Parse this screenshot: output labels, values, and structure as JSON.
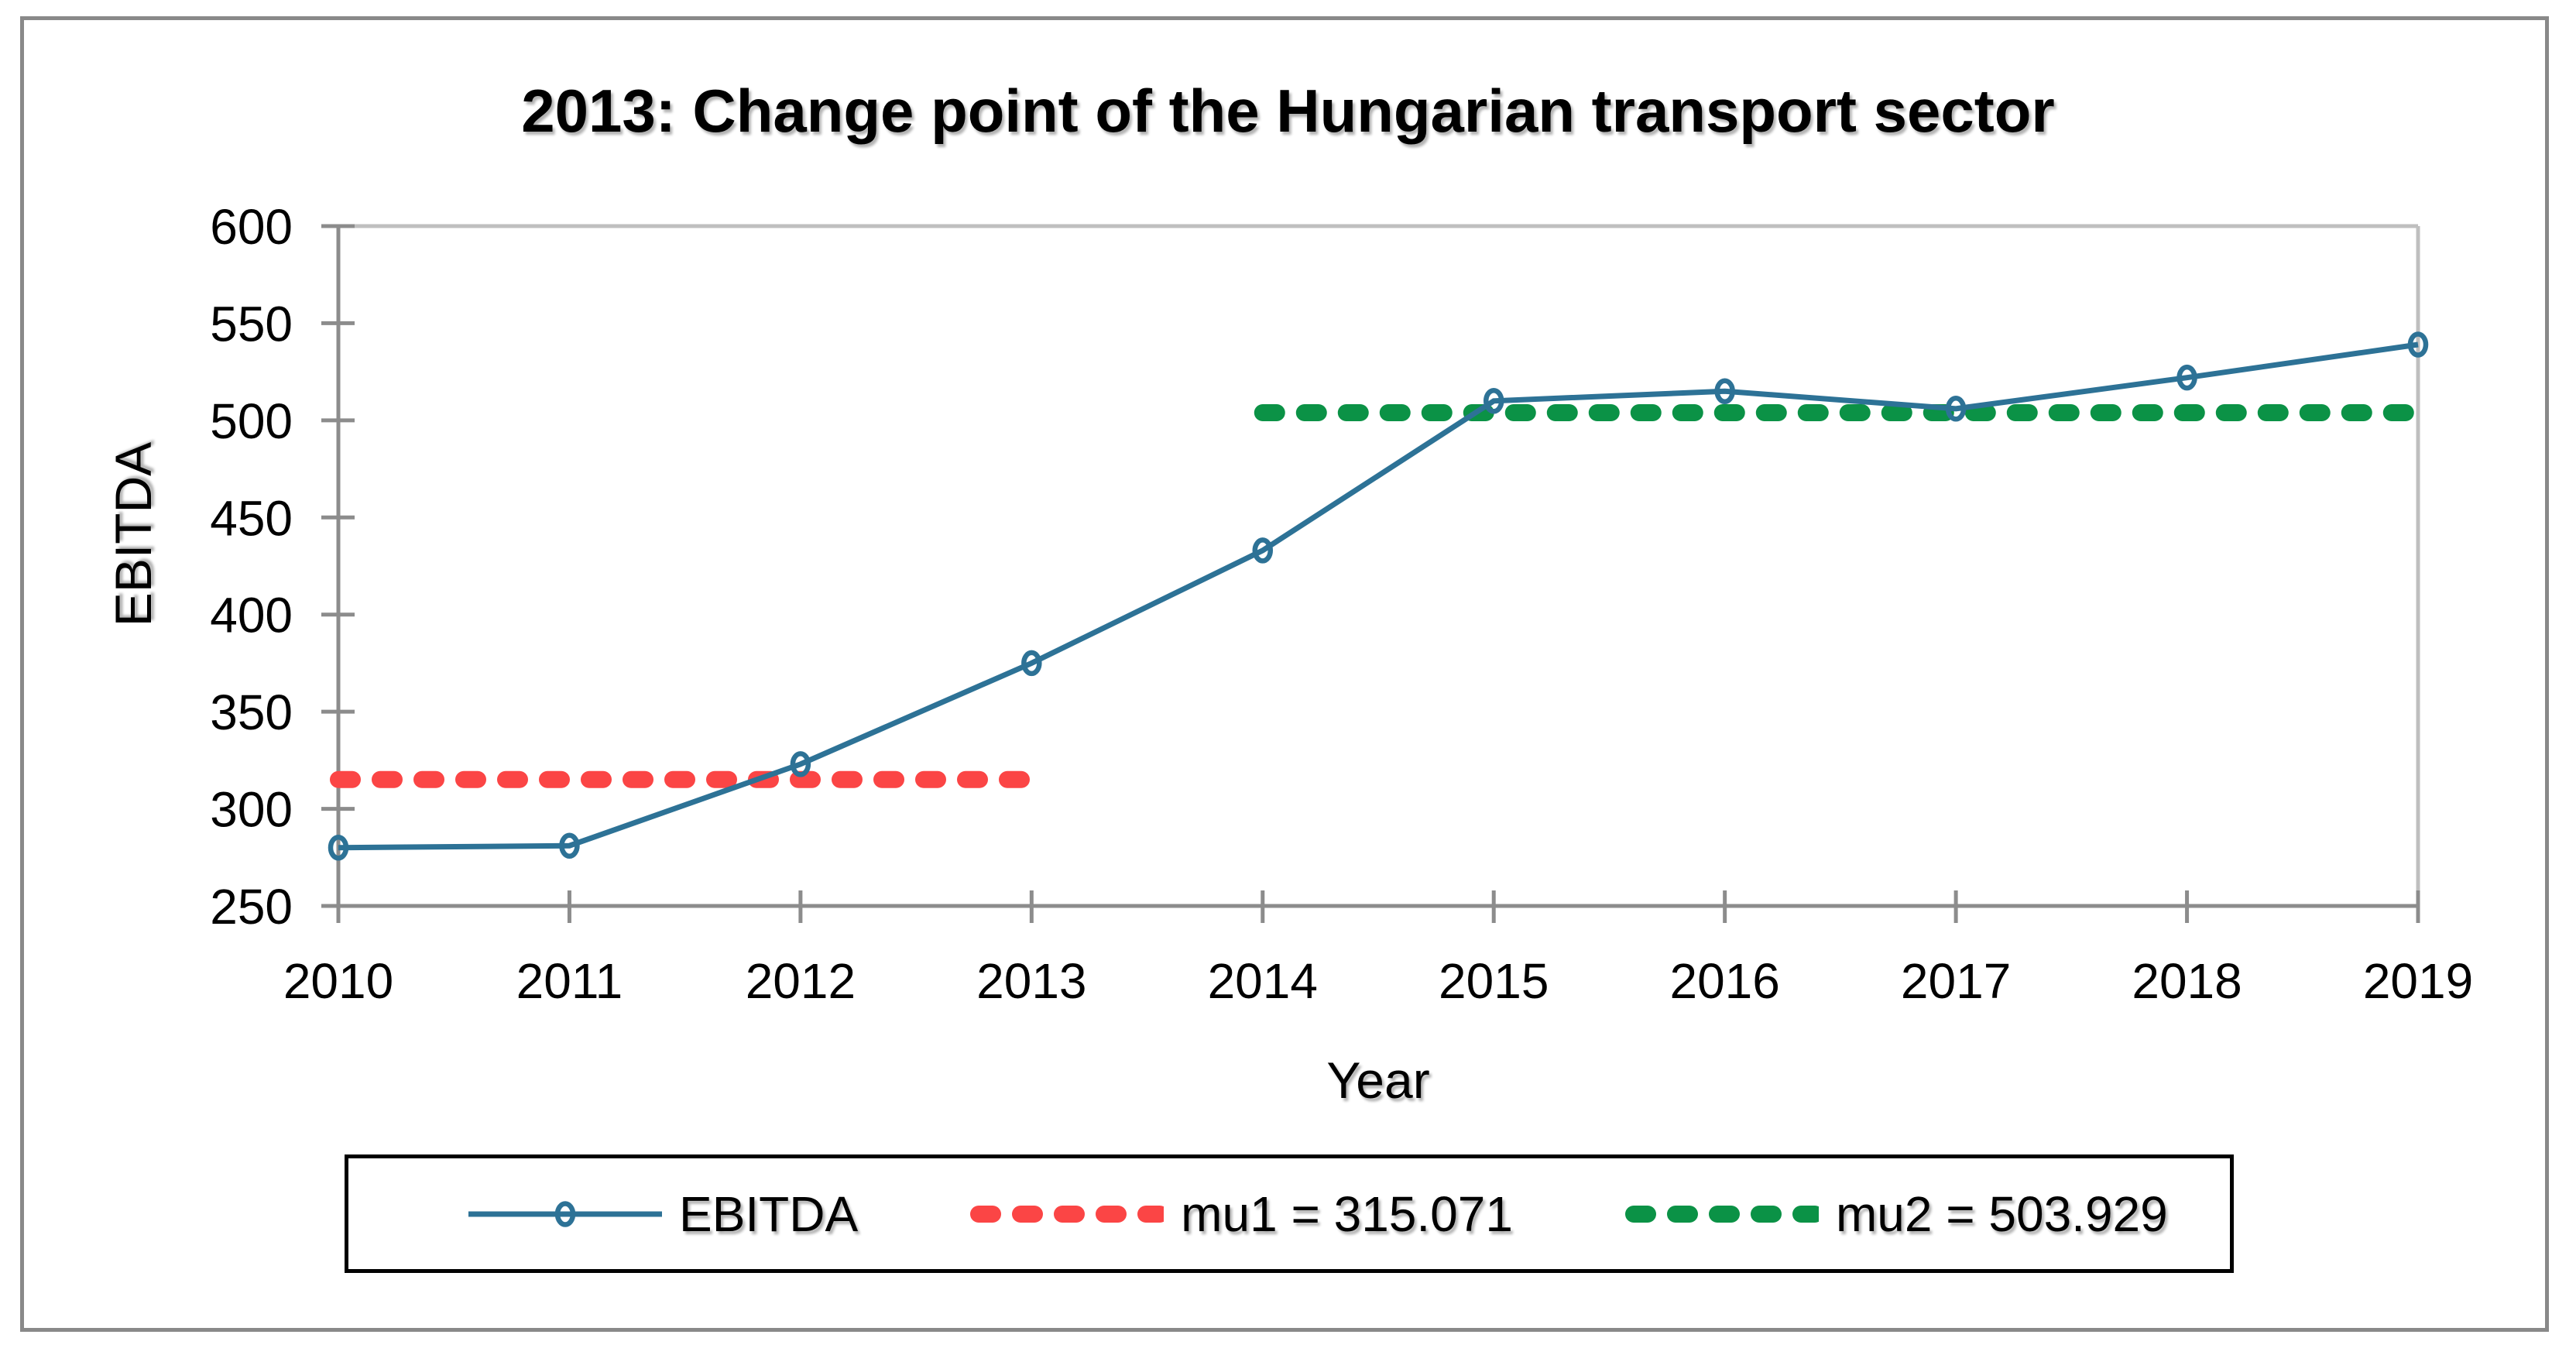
{
  "chart_data": {
    "type": "line",
    "title": "2013: Change point of the Hungarian transport sector",
    "xlabel": "Year",
    "ylabel": "EBITDA",
    "x": [
      2010,
      2011,
      2012,
      2013,
      2014,
      2015,
      2016,
      2017,
      2018,
      2019
    ],
    "xtick_labels": [
      "2010",
      "2011",
      "2012",
      "2013",
      "2014",
      "2015",
      "2016",
      "2017",
      "2018",
      "2019"
    ],
    "ylim": [
      250,
      600
    ],
    "ytick_step": 50,
    "ytick_labels": [
      "250",
      "300",
      "350",
      "400",
      "450",
      "500",
      "550",
      "600"
    ],
    "grid": false,
    "legend_position": "bottom",
    "series": [
      {
        "name": "EBITDA",
        "type": "line",
        "marker": "open-circle",
        "color": "#2D7296",
        "values": [
          280,
          281,
          323,
          375,
          433,
          510,
          515,
          506,
          522,
          539
        ]
      },
      {
        "name": "mu1 = 315.071",
        "type": "hline",
        "style": "dashed",
        "color": "#FB4545",
        "value": 315.071,
        "span_years": [
          2010,
          2013
        ]
      },
      {
        "name": "mu2 = 503.929",
        "type": "hline",
        "style": "dashed",
        "color": "#0B9246",
        "value": 503.929,
        "span_years": [
          2014,
          2019
        ]
      }
    ]
  },
  "colors": {
    "series_line": "#2D7296",
    "mu1_red": "#FB4545",
    "mu2_green": "#0B9246",
    "axis_gray": "#8C8C8C",
    "plot_border_light": "#BFBFBF",
    "figure_border": "#898989",
    "legend_border": "#000000",
    "text": "#000000"
  }
}
